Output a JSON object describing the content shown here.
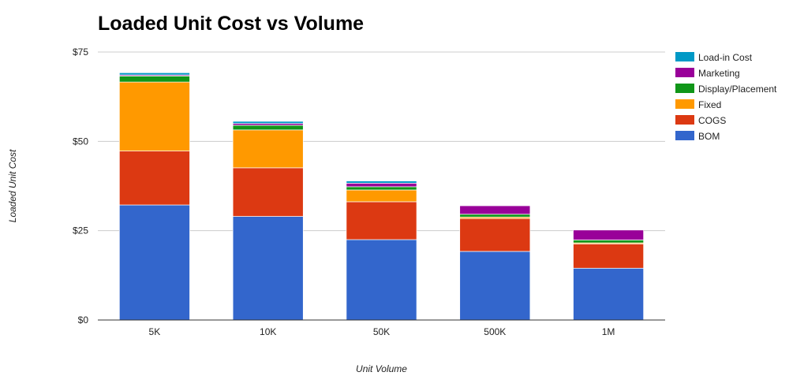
{
  "chart_data": {
    "type": "bar",
    "stacked": true,
    "title": "Loaded Unit Cost vs Volume",
    "xlabel": "Unit Volume",
    "ylabel": "Loaded Unit Cost",
    "categories": [
      "5K",
      "10K",
      "50K",
      "500K",
      "1M"
    ],
    "ylim": [
      0,
      75
    ],
    "yticks": [
      0,
      25,
      50,
      75
    ],
    "ytick_labels": [
      "$0",
      "$25",
      "$50",
      "$75"
    ],
    "grid": true,
    "legend_position": "right",
    "series": [
      {
        "name": "BOM",
        "color": "#3366cc",
        "values": [
          32.2,
          29.0,
          22.5,
          19.2,
          14.5
        ]
      },
      {
        "name": "COGS",
        "color": "#dc3912",
        "values": [
          15.1,
          13.6,
          10.6,
          9.2,
          6.8
        ]
      },
      {
        "name": "Fixed",
        "color": "#ff9900",
        "values": [
          19.3,
          10.6,
          3.3,
          0.4,
          0.3
        ]
      },
      {
        "name": "Display/Placement",
        "color": "#109618",
        "values": [
          1.7,
          1.3,
          0.9,
          0.8,
          0.8
        ]
      },
      {
        "name": "Marketing",
        "color": "#990099",
        "values": [
          0.3,
          0.5,
          1.0,
          2.4,
          2.8
        ]
      },
      {
        "name": "Load-in Cost",
        "color": "#0099c6",
        "values": [
          0.6,
          0.6,
          0.6,
          0.1,
          0.1
        ]
      }
    ],
    "legend_order": [
      "Load-in Cost",
      "Marketing",
      "Display/Placement",
      "Fixed",
      "COGS",
      "BOM"
    ]
  }
}
